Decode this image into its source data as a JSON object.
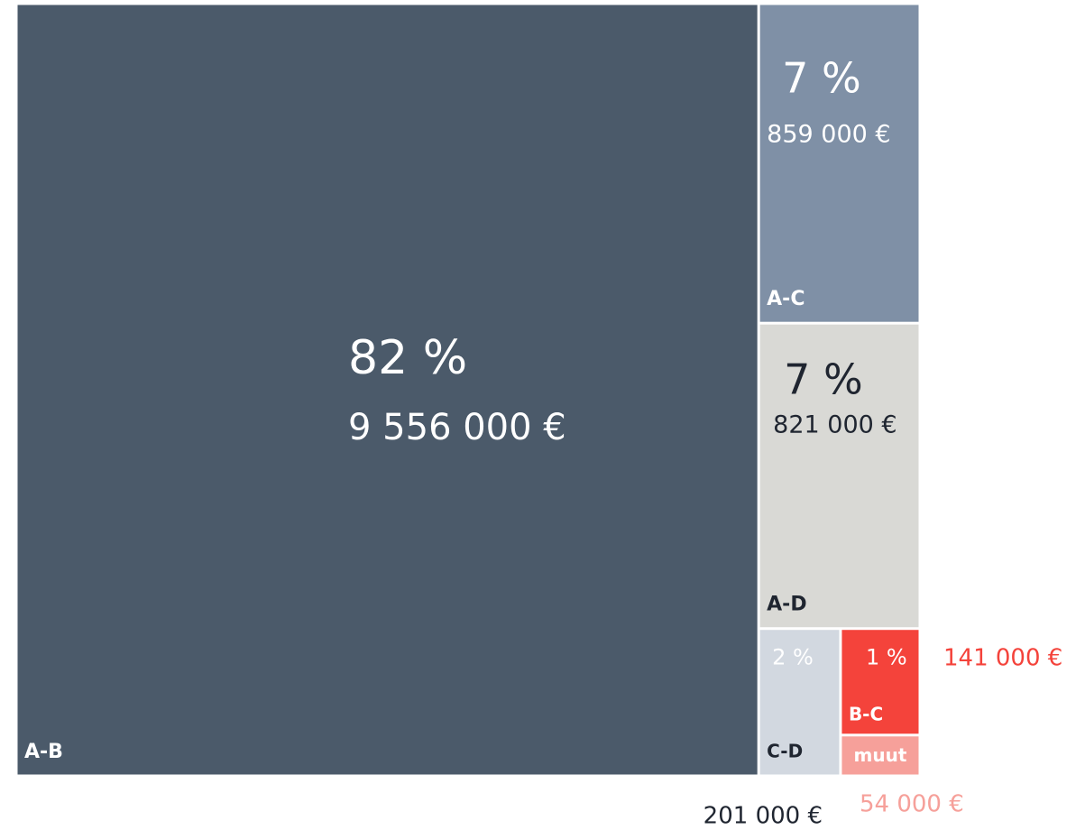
{
  "chart_data": {
    "type": "treemap",
    "categories": [
      "A-B",
      "A-C",
      "A-D",
      "C-D",
      "B-C",
      "muut"
    ],
    "values": [
      9556000,
      859000,
      821000,
      201000,
      141000,
      54000
    ],
    "value_labels": [
      "9 556 000 €",
      "859 000 €",
      "821 000 €",
      "201 000 €",
      "141 000 €",
      "54 000 €"
    ],
    "percent_labels": [
      "82 %",
      "7 %",
      "7 %",
      "2 %",
      "1 %",
      null
    ],
    "colors": [
      "#4b5a6a",
      "#7f90a6",
      "#d9d9d5",
      "#d2d8e0",
      "#f4433b",
      "#f6a09a"
    ]
  }
}
